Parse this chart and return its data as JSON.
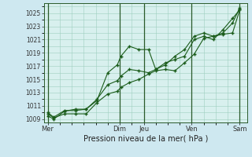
{
  "title": "",
  "xlabel": "Pression niveau de la mer( hPa )",
  "background_color": "#cee8f0",
  "plot_bg_color": "#d8f0ee",
  "grid_color": "#9ecebe",
  "line_color": "#1a5c1a",
  "marker_color": "#1a5c1a",
  "ylim": [
    1008.5,
    1026.5
  ],
  "yticks": [
    1009,
    1011,
    1013,
    1015,
    1017,
    1019,
    1021,
    1023,
    1025
  ],
  "day_labels": [
    "Mer",
    "Dim",
    "Jeu",
    "Ven",
    "Sam"
  ],
  "day_positions": [
    0,
    3.0,
    4.0,
    6.0,
    8.0
  ],
  "xmin": -0.15,
  "xmax": 8.3,
  "vline_positions": [
    0,
    3.0,
    4.0,
    6.0,
    8.0
  ],
  "line1_x": [
    0.0,
    0.25,
    0.7,
    1.15,
    1.6,
    2.05,
    2.5,
    2.9,
    3.05,
    3.4,
    3.8,
    4.2,
    4.5,
    4.9,
    5.3,
    5.7,
    6.1,
    6.5,
    6.9,
    7.3,
    7.7,
    8.0
  ],
  "line1_y": [
    1009.8,
    1009.2,
    1009.8,
    1009.8,
    1009.8,
    1011.5,
    1012.8,
    1013.2,
    1013.8,
    1014.5,
    1015.0,
    1015.8,
    1016.3,
    1016.5,
    1016.3,
    1017.5,
    1018.8,
    1021.2,
    1021.5,
    1021.8,
    1022.0,
    1025.5
  ],
  "line2_x": [
    0.0,
    0.25,
    0.7,
    1.15,
    1.6,
    2.05,
    2.5,
    2.9,
    3.05,
    3.4,
    3.8,
    4.2,
    4.5,
    4.9,
    5.3,
    5.7,
    6.1,
    6.5,
    6.9,
    7.3,
    7.7,
    8.0
  ],
  "line2_y": [
    1009.5,
    1009.0,
    1010.2,
    1010.5,
    1010.5,
    1012.0,
    1014.2,
    1014.8,
    1015.5,
    1016.5,
    1016.3,
    1016.0,
    1016.5,
    1017.5,
    1018.0,
    1018.5,
    1021.0,
    1021.5,
    1021.0,
    1022.5,
    1024.2,
    1025.5
  ],
  "line3_x": [
    0.0,
    0.25,
    0.7,
    1.15,
    1.6,
    2.05,
    2.5,
    2.9,
    3.05,
    3.4,
    3.8,
    4.2,
    4.5,
    4.9,
    5.3,
    5.7,
    6.1,
    6.5,
    6.9,
    7.3,
    7.7,
    8.0
  ],
  "line3_y": [
    1010.0,
    1009.3,
    1010.3,
    1010.3,
    1010.5,
    1011.8,
    1016.0,
    1017.2,
    1018.5,
    1020.0,
    1019.5,
    1019.5,
    1016.5,
    1017.2,
    1018.5,
    1019.5,
    1021.5,
    1022.0,
    1021.5,
    1022.0,
    1023.5,
    1025.8
  ]
}
